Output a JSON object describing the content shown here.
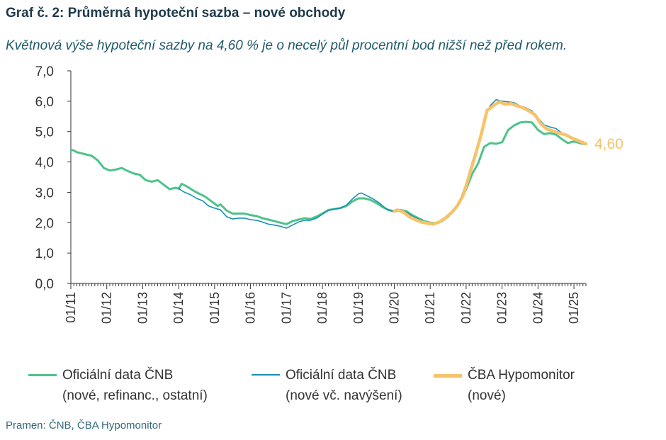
{
  "title": "Graf č. 2: Průměrná hypoteční sazba – nové obchody",
  "subtitle": "Květnová výše hypoteční sazby na 4,60 % je o necelý půl procentní bod nižší než před rokem.",
  "source": "Pramen: ČNB, ČBA Hypomonitor",
  "legend": [
    {
      "line1": "Oficiální data ČNB",
      "line2": "(nové, refinanc., ostatní)",
      "color": "#4cc38a"
    },
    {
      "line1": "Oficiální data ČNB",
      "line2": "(nové vč. navýšení)",
      "color": "#1a8fb4"
    },
    {
      "line1": "ČBA Hypomonitor",
      "line2": "(nové)",
      "color": "#f7c36a"
    }
  ],
  "chart_data": {
    "type": "line",
    "title": "Graf č. 2: Průměrná hypoteční sazba – nové obchody",
    "ylim": [
      0,
      7
    ],
    "yticks": [
      "0,0",
      "1,0",
      "2,0",
      "3,0",
      "4,0",
      "5,0",
      "6,0",
      "7,0"
    ],
    "xticks": [
      "01/11",
      "01/12",
      "01/13",
      "01/14",
      "01/15",
      "01/16",
      "01/17",
      "01/18",
      "01/19",
      "01/20",
      "01/21",
      "01/22",
      "01/23",
      "01/24",
      "01/25"
    ],
    "xlim": [
      "2011-01",
      "2025-05"
    ],
    "end_label": "4,60",
    "grid": false,
    "legend_position": "bottom",
    "series": [
      {
        "name": "Oficiální data ČNB (nové, refinanc., ostatní)",
        "color": "#4cc38a",
        "width": 3,
        "points": [
          [
            "2011-01",
            4.4
          ],
          [
            "2011-02",
            4.38
          ],
          [
            "2011-03",
            4.32
          ],
          [
            "2011-04",
            4.3
          ],
          [
            "2011-06",
            4.25
          ],
          [
            "2011-08",
            4.2
          ],
          [
            "2011-10",
            4.05
          ],
          [
            "2011-12",
            3.8
          ],
          [
            "2012-02",
            3.72
          ],
          [
            "2012-04",
            3.75
          ],
          [
            "2012-06",
            3.8
          ],
          [
            "2012-08",
            3.7
          ],
          [
            "2012-10",
            3.62
          ],
          [
            "2012-12",
            3.58
          ],
          [
            "2013-02",
            3.4
          ],
          [
            "2013-04",
            3.35
          ],
          [
            "2013-06",
            3.4
          ],
          [
            "2013-08",
            3.25
          ],
          [
            "2013-10",
            3.1
          ],
          [
            "2013-12",
            3.15
          ],
          [
            "2014-01",
            3.12
          ],
          [
            "2014-02",
            3.28
          ],
          [
            "2014-04",
            3.18
          ],
          [
            "2014-06",
            3.05
          ],
          [
            "2014-08",
            2.95
          ],
          [
            "2014-10",
            2.85
          ],
          [
            "2014-12",
            2.7
          ],
          [
            "2015-02",
            2.55
          ],
          [
            "2015-03",
            2.6
          ],
          [
            "2015-05",
            2.4
          ],
          [
            "2015-07",
            2.3
          ],
          [
            "2015-09",
            2.3
          ],
          [
            "2015-11",
            2.3
          ],
          [
            "2016-01",
            2.25
          ],
          [
            "2016-03",
            2.22
          ],
          [
            "2016-05",
            2.15
          ],
          [
            "2016-07",
            2.1
          ],
          [
            "2016-09",
            2.05
          ],
          [
            "2016-11",
            2.0
          ],
          [
            "2017-01",
            1.95
          ],
          [
            "2017-03",
            2.05
          ],
          [
            "2017-05",
            2.1
          ],
          [
            "2017-07",
            2.15
          ],
          [
            "2017-09",
            2.12
          ],
          [
            "2017-11",
            2.2
          ],
          [
            "2018-01",
            2.3
          ],
          [
            "2018-03",
            2.42
          ],
          [
            "2018-05",
            2.45
          ],
          [
            "2018-07",
            2.48
          ],
          [
            "2018-09",
            2.55
          ],
          [
            "2018-11",
            2.7
          ],
          [
            "2019-01",
            2.8
          ],
          [
            "2019-03",
            2.8
          ],
          [
            "2019-05",
            2.75
          ],
          [
            "2019-07",
            2.65
          ],
          [
            "2019-09",
            2.52
          ],
          [
            "2019-11",
            2.42
          ],
          [
            "2020-01",
            2.38
          ],
          [
            "2020-03",
            2.42
          ],
          [
            "2020-05",
            2.38
          ],
          [
            "2020-07",
            2.25
          ],
          [
            "2020-09",
            2.15
          ],
          [
            "2020-11",
            2.05
          ],
          [
            "2021-01",
            2.0
          ],
          [
            "2021-03",
            1.98
          ],
          [
            "2021-05",
            2.05
          ],
          [
            "2021-07",
            2.2
          ],
          [
            "2021-09",
            2.4
          ],
          [
            "2021-11",
            2.7
          ],
          [
            "2022-01",
            3.1
          ],
          [
            "2022-03",
            3.6
          ],
          [
            "2022-05",
            3.95
          ],
          [
            "2022-07",
            4.5
          ],
          [
            "2022-09",
            4.62
          ],
          [
            "2022-11",
            4.6
          ],
          [
            "2023-01",
            4.65
          ],
          [
            "2023-03",
            5.05
          ],
          [
            "2023-05",
            5.2
          ],
          [
            "2023-07",
            5.3
          ],
          [
            "2023-09",
            5.32
          ],
          [
            "2023-11",
            5.3
          ],
          [
            "2024-01",
            5.05
          ],
          [
            "2024-03",
            4.92
          ],
          [
            "2024-05",
            4.95
          ],
          [
            "2024-07",
            4.9
          ],
          [
            "2024-09",
            4.75
          ],
          [
            "2024-11",
            4.62
          ],
          [
            "2025-01",
            4.68
          ],
          [
            "2025-03",
            4.62
          ],
          [
            "2025-05",
            4.58
          ]
        ]
      },
      {
        "name": "Oficiální data ČNB (nové vč. navýšení)",
        "color": "#1a8fb4",
        "width": 1.6,
        "points": [
          [
            "2014-01",
            3.12
          ],
          [
            "2014-03",
            3.0
          ],
          [
            "2014-05",
            2.92
          ],
          [
            "2014-07",
            2.8
          ],
          [
            "2014-09",
            2.72
          ],
          [
            "2014-11",
            2.55
          ],
          [
            "2015-01",
            2.48
          ],
          [
            "2015-03",
            2.42
          ],
          [
            "2015-05",
            2.2
          ],
          [
            "2015-07",
            2.12
          ],
          [
            "2015-09",
            2.15
          ],
          [
            "2015-11",
            2.15
          ],
          [
            "2016-01",
            2.1
          ],
          [
            "2016-03",
            2.08
          ],
          [
            "2016-05",
            2.02
          ],
          [
            "2016-07",
            1.95
          ],
          [
            "2016-09",
            1.92
          ],
          [
            "2016-11",
            1.88
          ],
          [
            "2017-01",
            1.82
          ],
          [
            "2017-03",
            1.92
          ],
          [
            "2017-05",
            2.02
          ],
          [
            "2017-07",
            2.08
          ],
          [
            "2017-09",
            2.08
          ],
          [
            "2017-11",
            2.15
          ],
          [
            "2018-01",
            2.28
          ],
          [
            "2018-03",
            2.4
          ],
          [
            "2018-05",
            2.45
          ],
          [
            "2018-07",
            2.48
          ],
          [
            "2018-09",
            2.58
          ],
          [
            "2018-11",
            2.78
          ],
          [
            "2019-01",
            2.95
          ],
          [
            "2019-02",
            2.98
          ],
          [
            "2019-04",
            2.88
          ],
          [
            "2019-06",
            2.78
          ],
          [
            "2019-08",
            2.65
          ],
          [
            "2019-10",
            2.48
          ],
          [
            "2019-12",
            2.38
          ],
          [
            "2020-01",
            2.35
          ],
          [
            "2020-03",
            2.4
          ],
          [
            "2020-05",
            2.35
          ],
          [
            "2020-07",
            2.22
          ],
          [
            "2020-09",
            2.12
          ],
          [
            "2020-11",
            2.02
          ],
          [
            "2021-01",
            1.98
          ],
          [
            "2021-03",
            1.95
          ],
          [
            "2021-05",
            2.05
          ],
          [
            "2021-07",
            2.25
          ],
          [
            "2021-09",
            2.45
          ],
          [
            "2021-11",
            2.75
          ],
          [
            "2022-01",
            3.3
          ],
          [
            "2022-03",
            4.0
          ],
          [
            "2022-05",
            4.6
          ],
          [
            "2022-07",
            5.4
          ],
          [
            "2022-09",
            5.85
          ],
          [
            "2022-11",
            6.05
          ],
          [
            "2023-01",
            6.0
          ],
          [
            "2023-03",
            5.98
          ],
          [
            "2023-05",
            5.95
          ],
          [
            "2023-07",
            5.85
          ],
          [
            "2023-09",
            5.78
          ],
          [
            "2023-11",
            5.68
          ],
          [
            "2024-01",
            5.45
          ],
          [
            "2024-03",
            5.22
          ],
          [
            "2024-05",
            5.15
          ],
          [
            "2024-07",
            5.1
          ],
          [
            "2024-09",
            4.95
          ],
          [
            "2024-11",
            4.85
          ],
          [
            "2025-01",
            4.78
          ],
          [
            "2025-03",
            4.7
          ]
        ]
      },
      {
        "name": "ČBA Hypomonitor (nové)",
        "color": "#f7c36a",
        "width": 4.5,
        "points": [
          [
            "2020-01",
            2.38
          ],
          [
            "2020-02",
            2.42
          ],
          [
            "2020-04",
            2.35
          ],
          [
            "2020-06",
            2.2
          ],
          [
            "2020-08",
            2.1
          ],
          [
            "2020-10",
            2.02
          ],
          [
            "2020-12",
            1.98
          ],
          [
            "2021-02",
            1.95
          ],
          [
            "2021-04",
            2.02
          ],
          [
            "2021-06",
            2.15
          ],
          [
            "2021-08",
            2.32
          ],
          [
            "2021-10",
            2.55
          ],
          [
            "2021-12",
            2.9
          ],
          [
            "2022-02",
            3.55
          ],
          [
            "2022-04",
            4.2
          ],
          [
            "2022-06",
            4.9
          ],
          [
            "2022-08",
            5.7
          ],
          [
            "2022-10",
            5.85
          ],
          [
            "2022-12",
            5.98
          ],
          [
            "2023-02",
            5.9
          ],
          [
            "2023-04",
            5.92
          ],
          [
            "2023-06",
            5.85
          ],
          [
            "2023-08",
            5.78
          ],
          [
            "2023-10",
            5.68
          ],
          [
            "2023-12",
            5.55
          ],
          [
            "2024-02",
            5.25
          ],
          [
            "2024-04",
            5.08
          ],
          [
            "2024-06",
            5.02
          ],
          [
            "2024-08",
            4.95
          ],
          [
            "2024-10",
            4.9
          ],
          [
            "2024-12",
            4.8
          ],
          [
            "2025-02",
            4.72
          ],
          [
            "2025-05",
            4.6
          ]
        ]
      }
    ]
  }
}
